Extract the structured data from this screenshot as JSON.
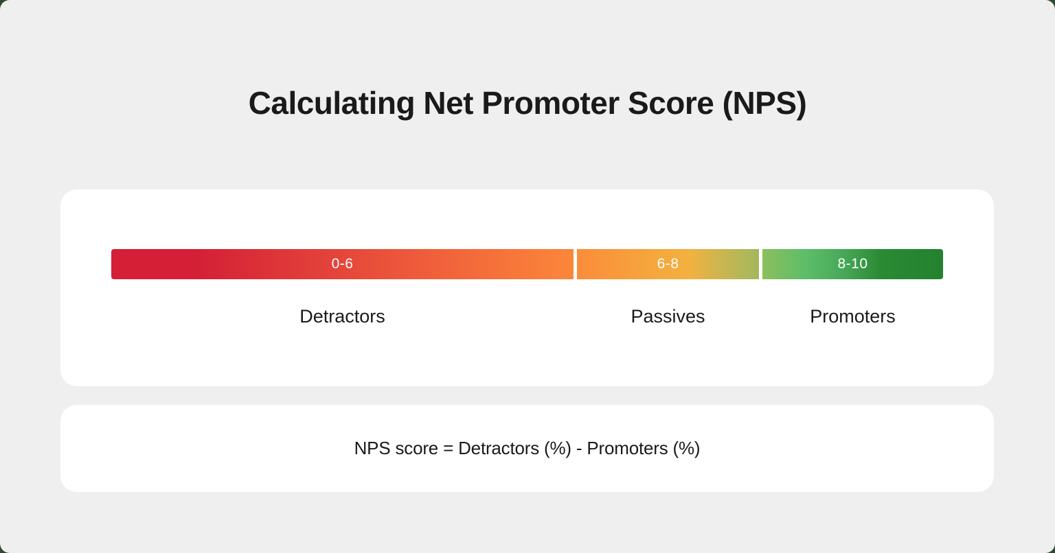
{
  "title": "Calculating Net Promoter Score (NPS)",
  "scale": {
    "segments": [
      {
        "range": "0-6",
        "label": "Detractors",
        "colors": [
          "#d41f36",
          "#fb873a"
        ]
      },
      {
        "range": "6-8",
        "label": "Passives",
        "colors": [
          "#fb8c3a",
          "#f2b140",
          "#a2b85c"
        ]
      },
      {
        "range": "8-10",
        "label": "Promoters",
        "colors": [
          "#8cbf5e",
          "#5bbd68",
          "#23822e"
        ]
      }
    ]
  },
  "formula": {
    "text": "NPS score = Detractors (%) - Promoters (%)"
  },
  "colors": {
    "background": "#efefef",
    "card": "#ffffff",
    "text": "#1a1a1a"
  }
}
